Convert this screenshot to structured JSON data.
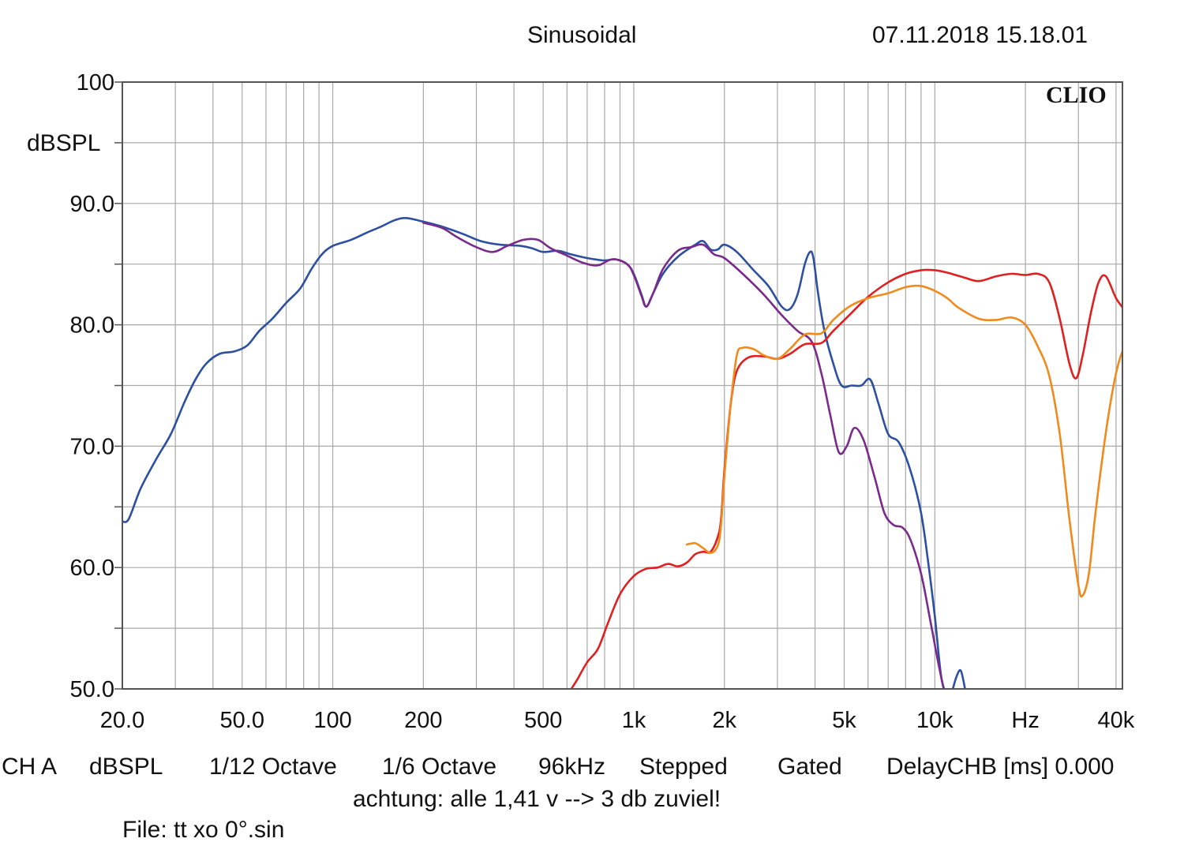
{
  "header": {
    "mode": "Sinusoidal",
    "timestamp": "07.11.2018 15.18.01"
  },
  "footer": {
    "settings": [
      "CH A",
      "dBSPL",
      "1/12 Octave",
      "1/6 Octave",
      "96kHz",
      "Stepped",
      "Gated",
      "DelayCHB [ms] 0.000"
    ],
    "note": "achtung: alle 1,41 v --> 3 db zuviel!",
    "file": "File: tt xo 0°.sin"
  },
  "colors": {
    "grid": "#a8a8a8",
    "frame": "#555555",
    "text": "#111111"
  },
  "chart_data": {
    "type": "line",
    "watermark": "CLIO",
    "x_scale": "log",
    "xlim": [
      20,
      42000
    ],
    "ylim": [
      50,
      100
    ],
    "grid": true,
    "ylabel": "dBSPL",
    "xlabel": "Hz",
    "y_ticks": [
      {
        "value": 100,
        "label": "100"
      },
      {
        "value": 90,
        "label": "90.0"
      },
      {
        "value": 80,
        "label": "80.0"
      },
      {
        "value": 70,
        "label": "70.0"
      },
      {
        "value": 60,
        "label": "60.0"
      },
      {
        "value": 50,
        "label": "50.0"
      }
    ],
    "x_ticks": [
      {
        "value": 20,
        "label": "20.0"
      },
      {
        "value": 50,
        "label": "50.0"
      },
      {
        "value": 100,
        "label": "100"
      },
      {
        "value": 200,
        "label": "200"
      },
      {
        "value": 500,
        "label": "500"
      },
      {
        "value": 1000,
        "label": "1k"
      },
      {
        "value": 2000,
        "label": "2k"
      },
      {
        "value": 5000,
        "label": "5k"
      },
      {
        "value": 10000,
        "label": "10k"
      },
      {
        "value": 20000,
        "label": "Hz"
      },
      {
        "value": 40000,
        "label": "40k"
      }
    ],
    "series": [
      {
        "color": "#2c4fa0",
        "points": [
          [
            20,
            63.8
          ],
          [
            21,
            64
          ],
          [
            23,
            66.5
          ],
          [
            26,
            69
          ],
          [
            29,
            71
          ],
          [
            32,
            73.5
          ],
          [
            35,
            75.5
          ],
          [
            38,
            76.8
          ],
          [
            42,
            77.6
          ],
          [
            47,
            77.8
          ],
          [
            52,
            78.3
          ],
          [
            57,
            79.5
          ],
          [
            63,
            80.5
          ],
          [
            70,
            81.8
          ],
          [
            78,
            83
          ],
          [
            85,
            84.6
          ],
          [
            92,
            85.8
          ],
          [
            100,
            86.5
          ],
          [
            115,
            87
          ],
          [
            130,
            87.6
          ],
          [
            145,
            88.1
          ],
          [
            160,
            88.6
          ],
          [
            175,
            88.8
          ],
          [
            200,
            88.5
          ],
          [
            230,
            88.1
          ],
          [
            270,
            87.5
          ],
          [
            310,
            86.9
          ],
          [
            360,
            86.6
          ],
          [
            420,
            86.5
          ],
          [
            460,
            86.3
          ],
          [
            500,
            86
          ],
          [
            560,
            86.1
          ],
          [
            620,
            85.8
          ],
          [
            700,
            85.5
          ],
          [
            800,
            85.3
          ],
          [
            870,
            85.4
          ],
          [
            950,
            85
          ],
          [
            1000,
            84.2
          ],
          [
            1060,
            82.5
          ],
          [
            1100,
            81.5
          ],
          [
            1150,
            82.4
          ],
          [
            1250,
            84.2
          ],
          [
            1400,
            85.6
          ],
          [
            1600,
            86.6
          ],
          [
            1700,
            86.9
          ],
          [
            1800,
            86.2
          ],
          [
            1900,
            86.2
          ],
          [
            2000,
            86.6
          ],
          [
            2200,
            86
          ],
          [
            2500,
            84.5
          ],
          [
            2800,
            83.2
          ],
          [
            3100,
            81.5
          ],
          [
            3300,
            81.3
          ],
          [
            3500,
            82.5
          ],
          [
            3700,
            85
          ],
          [
            3850,
            86
          ],
          [
            3950,
            85.5
          ],
          [
            4100,
            82.5
          ],
          [
            4300,
            79.5
          ],
          [
            4600,
            76.8
          ],
          [
            4900,
            75
          ],
          [
            5300,
            75
          ],
          [
            5700,
            75
          ],
          [
            6100,
            75.5
          ],
          [
            6500,
            73.5
          ],
          [
            7000,
            71
          ],
          [
            7600,
            70.3
          ],
          [
            8300,
            68
          ],
          [
            9000,
            64.5
          ],
          [
            9500,
            60.5
          ],
          [
            10000,
            56
          ],
          [
            10500,
            51
          ],
          [
            11000,
            49.5
          ],
          [
            11300,
            49.5
          ],
          [
            11800,
            51
          ],
          [
            12200,
            51.5
          ],
          [
            12600,
            50
          ]
        ]
      },
      {
        "color": "#7a2a8a",
        "points": [
          [
            200,
            88.4
          ],
          [
            230,
            88
          ],
          [
            260,
            87.2
          ],
          [
            300,
            86.4
          ],
          [
            340,
            86
          ],
          [
            380,
            86.5
          ],
          [
            430,
            87
          ],
          [
            480,
            87
          ],
          [
            530,
            86.3
          ],
          [
            600,
            85.7
          ],
          [
            680,
            85.1
          ],
          [
            760,
            84.9
          ],
          [
            850,
            85.4
          ],
          [
            950,
            85
          ],
          [
            1000,
            84.1
          ],
          [
            1060,
            82.4
          ],
          [
            1100,
            81.5
          ],
          [
            1160,
            82.6
          ],
          [
            1250,
            84.6
          ],
          [
            1400,
            86.1
          ],
          [
            1550,
            86.4
          ],
          [
            1700,
            86.6
          ],
          [
            1850,
            85.8
          ],
          [
            2000,
            85.5
          ],
          [
            2300,
            84.2
          ],
          [
            2700,
            82.5
          ],
          [
            3100,
            80.8
          ],
          [
            3500,
            79.5
          ],
          [
            3900,
            78.6
          ],
          [
            4200,
            76
          ],
          [
            4500,
            72.5
          ],
          [
            4800,
            69.5
          ],
          [
            5100,
            70
          ],
          [
            5400,
            71.5
          ],
          [
            5800,
            70.5
          ],
          [
            6300,
            67.5
          ],
          [
            6800,
            64.5
          ],
          [
            7300,
            63.5
          ],
          [
            7800,
            63.3
          ],
          [
            8300,
            62.3
          ],
          [
            9000,
            59.5
          ],
          [
            9600,
            56
          ],
          [
            10200,
            52.5
          ],
          [
            10700,
            50
          ]
        ]
      },
      {
        "color": "#e02020",
        "points": [
          [
            620,
            50
          ],
          [
            650,
            50.8
          ],
          [
            700,
            52.2
          ],
          [
            760,
            53.3
          ],
          [
            820,
            55.4
          ],
          [
            900,
            57.8
          ],
          [
            1000,
            59.3
          ],
          [
            1100,
            59.9
          ],
          [
            1200,
            60
          ],
          [
            1300,
            60.3
          ],
          [
            1400,
            60.1
          ],
          [
            1500,
            60.4
          ],
          [
            1600,
            61.1
          ],
          [
            1700,
            61.3
          ],
          [
            1800,
            61.3
          ],
          [
            1900,
            62.5
          ],
          [
            1950,
            64
          ],
          [
            2000,
            68
          ],
          [
            2100,
            73.5
          ],
          [
            2200,
            76.2
          ],
          [
            2400,
            77.3
          ],
          [
            2700,
            77.4
          ],
          [
            3000,
            77.2
          ],
          [
            3300,
            77.6
          ],
          [
            3700,
            78.4
          ],
          [
            4200,
            78.5
          ],
          [
            4600,
            79.5
          ],
          [
            5200,
            80.8
          ],
          [
            6000,
            82.3
          ],
          [
            7000,
            83.5
          ],
          [
            8000,
            84.2
          ],
          [
            9000,
            84.5
          ],
          [
            10000,
            84.5
          ],
          [
            11000,
            84.3
          ],
          [
            12500,
            83.9
          ],
          [
            14000,
            83.6
          ],
          [
            16000,
            84
          ],
          [
            18000,
            84.2
          ],
          [
            20000,
            84.1
          ],
          [
            22000,
            84.2
          ],
          [
            24000,
            83.5
          ],
          [
            26000,
            80.5
          ],
          [
            28000,
            76.8
          ],
          [
            29500,
            75.6
          ],
          [
            31000,
            77.5
          ],
          [
            33000,
            81
          ],
          [
            35000,
            83.5
          ],
          [
            37000,
            84
          ],
          [
            40000,
            82.2
          ],
          [
            43000,
            81
          ],
          [
            46000,
            79
          ],
          [
            49000,
            73
          ]
        ]
      },
      {
        "color": "#f08a1c",
        "points": [
          [
            1500,
            61.9
          ],
          [
            1600,
            62
          ],
          [
            1700,
            61.6
          ],
          [
            1800,
            61.2
          ],
          [
            1900,
            61.8
          ],
          [
            1950,
            63.5
          ],
          [
            2000,
            67.5
          ],
          [
            2100,
            73.5
          ],
          [
            2200,
            77.5
          ],
          [
            2300,
            78.1
          ],
          [
            2500,
            78
          ],
          [
            2700,
            77.5
          ],
          [
            3000,
            77.2
          ],
          [
            3300,
            78
          ],
          [
            3700,
            79.2
          ],
          [
            4200,
            79.3
          ],
          [
            4600,
            80.4
          ],
          [
            5200,
            81.5
          ],
          [
            6000,
            82.2
          ],
          [
            7000,
            82.6
          ],
          [
            8000,
            83.1
          ],
          [
            9000,
            83.2
          ],
          [
            10000,
            82.8
          ],
          [
            11000,
            82.2
          ],
          [
            12000,
            81.4
          ],
          [
            14000,
            80.5
          ],
          [
            16000,
            80.4
          ],
          [
            18000,
            80.6
          ],
          [
            20000,
            80
          ],
          [
            22000,
            78.2
          ],
          [
            24000,
            75.8
          ],
          [
            26000,
            71
          ],
          [
            28000,
            64
          ],
          [
            30000,
            58.5
          ],
          [
            31000,
            57.7
          ],
          [
            32500,
            59.5
          ],
          [
            34000,
            64
          ],
          [
            36000,
            69
          ],
          [
            38000,
            73
          ],
          [
            40000,
            76
          ],
          [
            42000,
            77.8
          ],
          [
            44000,
            78.3
          ],
          [
            46000,
            77.5
          ],
          [
            48000,
            75
          ],
          [
            49000,
            71.5
          ]
        ]
      }
    ]
  }
}
